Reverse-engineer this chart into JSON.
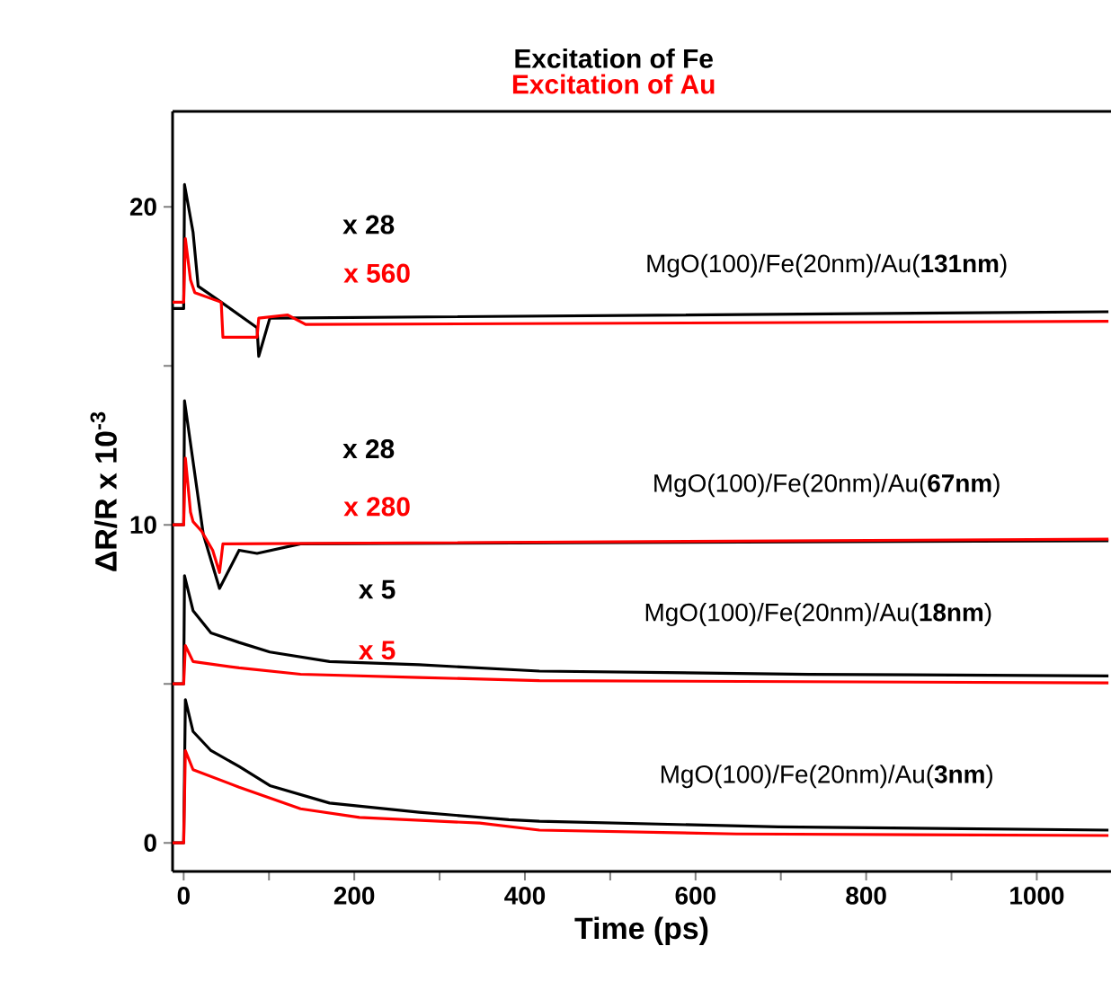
{
  "chart_data": {
    "type": "line",
    "xlabel": "Time (ps)",
    "ylabel": "ΔR/R x 10$^{-3}$",
    "xlim": [
      -13,
      1087
    ],
    "ylim": [
      -0.9,
      23
    ],
    "xticks": [
      0,
      {
        "value": 100,
        "label": null
      },
      200,
      {
        "value": 300,
        "label": null
      },
      400,
      {
        "value": 500,
        "label": null
      },
      600,
      {
        "value": 700,
        "label": null
      },
      800,
      {
        "value": 900,
        "label": null
      },
      1000
    ],
    "yticks": [
      0,
      {
        "value": 5,
        "label": null
      },
      10,
      {
        "value": 15,
        "label": null
      },
      20
    ],
    "legend": "top",
    "grid": false,
    "marker": "none",
    "line_style": "solid",
    "series": [
      {
        "name": "Excitation of Fe",
        "color": "#000000",
        "x": [
          -13,
          0,
          1,
          11,
          17,
          44,
          86,
          88,
          101,
          1084
        ],
        "values": [
          16.8,
          16.8,
          20.7,
          19.2,
          17.5,
          17.0,
          16.2,
          15.3,
          16.5,
          16.7
        ]
      },
      {
        "name": "Excitation of Au",
        "color": "#ff0000",
        "x": [
          -13,
          0,
          2,
          8,
          13,
          44,
          46,
          86,
          88,
          122,
          143,
          1084
        ],
        "values": [
          17.0,
          17.0,
          19.0,
          17.7,
          17.3,
          17.0,
          15.9,
          15.9,
          16.5,
          16.6,
          16.3,
          16.4
        ]
      },
      {
        "color": "#000000",
        "x": [
          -13,
          0,
          1,
          23,
          42,
          65,
          86,
          137,
          1084
        ],
        "values": [
          10.0,
          10.0,
          13.9,
          9.7,
          8.0,
          9.2,
          9.1,
          9.4,
          9.5
        ]
      },
      {
        "color": "#ff0000",
        "x": [
          -13,
          0,
          2,
          8,
          11,
          21,
          34,
          42,
          46,
          1084
        ],
        "values": [
          10.0,
          10.0,
          12.1,
          10.4,
          10.1,
          9.8,
          9.2,
          8.5,
          9.4,
          9.55
        ]
      },
      {
        "color": "#000000",
        "x": [
          -13,
          0,
          1,
          11,
          32,
          65,
          101,
          171,
          276,
          417,
          733,
          1084
        ],
        "values": [
          5.0,
          5.0,
          8.4,
          7.3,
          6.6,
          6.3,
          6.0,
          5.7,
          5.6,
          5.4,
          5.3,
          5.25
        ]
      },
      {
        "color": "#ff0000",
        "x": [
          -13,
          0,
          2,
          11,
          65,
          137,
          276,
          417,
          1084
        ],
        "values": [
          5.0,
          5.0,
          6.2,
          5.7,
          5.5,
          5.3,
          5.2,
          5.1,
          5.03
        ]
      },
      {
        "color": "#000000",
        "x": [
          -13,
          0,
          2,
          11,
          32,
          65,
          101,
          171,
          276,
          381,
          417,
          697,
          1084
        ],
        "values": [
          0,
          0,
          4.5,
          3.5,
          2.9,
          2.4,
          1.8,
          1.25,
          0.96,
          0.73,
          0.68,
          0.5,
          0.4
        ]
      },
      {
        "color": "#ff0000",
        "x": [
          -13,
          0,
          2,
          11,
          65,
          137,
          206,
          347,
          417,
          648,
          1084
        ],
        "values": [
          0,
          0,
          2.9,
          2.3,
          1.75,
          1.07,
          0.8,
          0.62,
          0.4,
          0.28,
          0.23
        ]
      }
    ],
    "annotations": [
      "x 28",
      "x 560",
      "MgO(100)/Fe(20nm)/Au(**131nm**)",
      "x 28",
      "x 280",
      "MgO(100)/Fe(20nm)/Au(**67nm**)",
      "x 5",
      "x 5",
      "MgO(100)/Fe(20nm)/Au(**18nm**)",
      "MgO(100)/Fe(20nm)/Au(**3nm**)"
    ]
  }
}
